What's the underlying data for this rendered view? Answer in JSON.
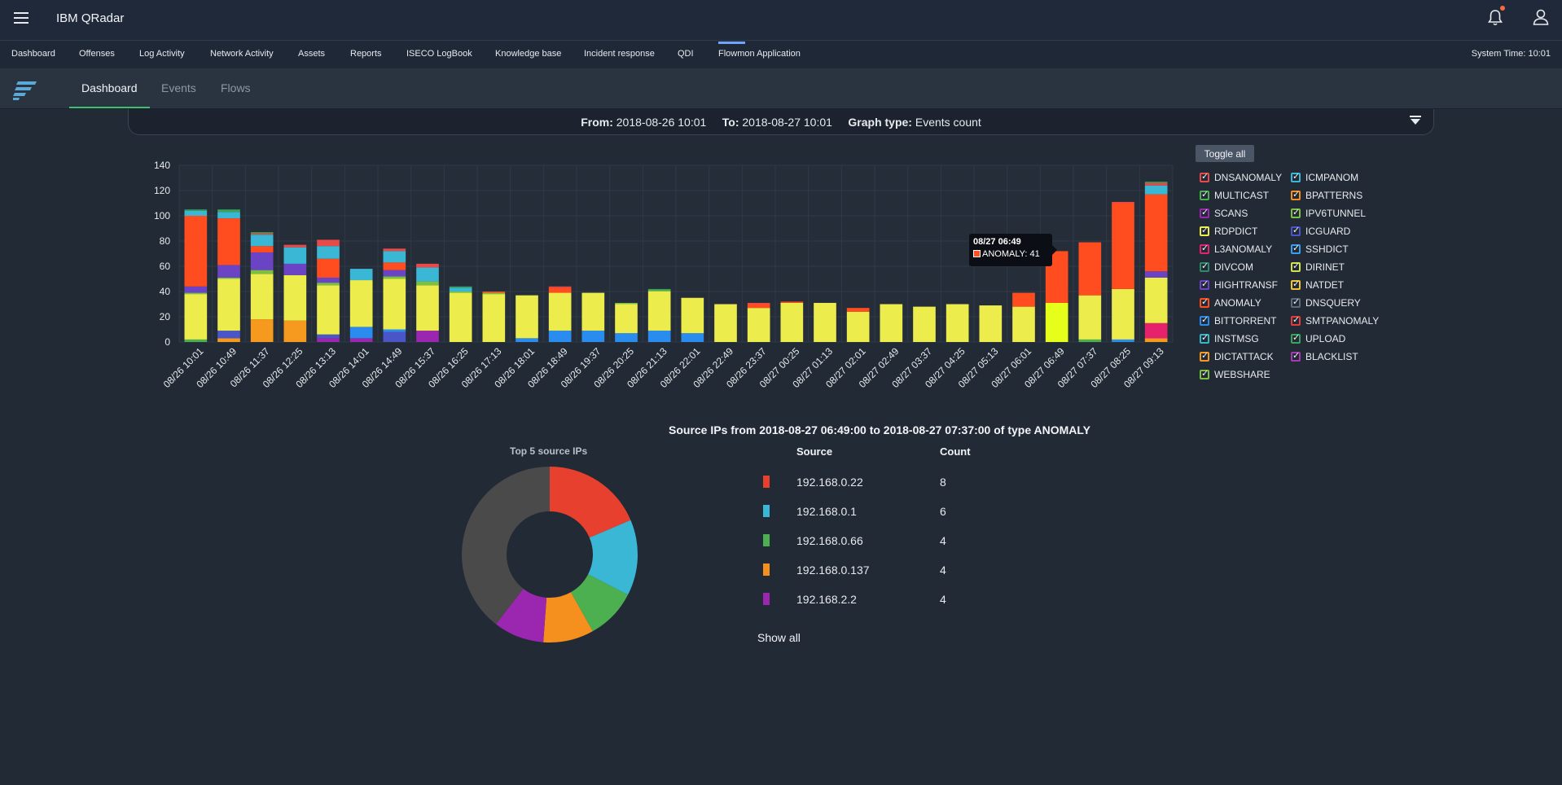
{
  "app": {
    "title": "IBM QRadar"
  },
  "nav": {
    "items": [
      "Dashboard",
      "Offenses",
      "Log Activity",
      "Network Activity",
      "Assets",
      "Reports",
      "ISECO LogBook",
      "Knowledge base",
      "Incident response",
      "QDI",
      "Flowmon Application"
    ],
    "active": "Flowmon Application",
    "system_time": "System Time: 10:01"
  },
  "subtabs": {
    "items": [
      "Dashboard",
      "Events",
      "Flows"
    ],
    "active": "Dashboard"
  },
  "filter": {
    "from_label": "From:",
    "from_value": "2018-08-26 10:01",
    "to_label": "To:",
    "to_value": "2018-08-27 10:01",
    "graph_label": "Graph type:",
    "graph_value": "Events count"
  },
  "legend": {
    "toggle_label": "Toggle all",
    "items": [
      {
        "name": "DNSANOMALY",
        "color": "#e84a4a"
      },
      {
        "name": "ICMPANOM",
        "color": "#3ab7d4"
      },
      {
        "name": "MULTICAST",
        "color": "#4caf50"
      },
      {
        "name": "BPATTERNS",
        "color": "#f5901e"
      },
      {
        "name": "SCANS",
        "color": "#9b27b0"
      },
      {
        "name": "IPV6TUNNEL",
        "color": "#7bc043"
      },
      {
        "name": "RDPDICT",
        "color": "#ecec4c"
      },
      {
        "name": "ICGUARD",
        "color": "#4a55c8"
      },
      {
        "name": "L3ANOMALY",
        "color": "#e5226b"
      },
      {
        "name": "SSHDICT",
        "color": "#3a9ef0"
      },
      {
        "name": "DIVCOM",
        "color": "#2f8a6c"
      },
      {
        "name": "DIRINET",
        "color": "#d6e04a"
      },
      {
        "name": "HIGHTRANSF",
        "color": "#6a44c4"
      },
      {
        "name": "NATDET",
        "color": "#f2c230"
      },
      {
        "name": "ANOMALY",
        "color": "#ff4d1f"
      },
      {
        "name": "DNSQUERY",
        "color": "#5b6a7a"
      },
      {
        "name": "BITTORRENT",
        "color": "#2b8cf0"
      },
      {
        "name": "SMTPANOMALY",
        "color": "#e63b3b"
      },
      {
        "name": "INSTMSG",
        "color": "#35b7c8"
      },
      {
        "name": "UPLOAD",
        "color": "#3aa55a"
      },
      {
        "name": "DICTATTACK",
        "color": "#f59a1e"
      },
      {
        "name": "BLACKLIST",
        "color": "#a33ab3"
      },
      {
        "name": "WEBSHARE",
        "color": "#7cc241"
      }
    ]
  },
  "tooltip": {
    "title": "08/27 06:49",
    "series": "ANOMALY: 41"
  },
  "chart_data": {
    "type": "bar",
    "stacked": true,
    "ylim": [
      0,
      140
    ],
    "yticks": [
      0,
      20,
      40,
      60,
      80,
      100,
      120,
      140
    ],
    "categories": [
      "08/26 10:01",
      "08/26 10:49",
      "08/26 11:37",
      "08/26 12:25",
      "08/26 13:13",
      "08/26 14:01",
      "08/26 14:49",
      "08/26 15:37",
      "08/26 16:25",
      "08/26 17:13",
      "08/26 18:01",
      "08/26 18:49",
      "08/26 19:37",
      "08/26 20:25",
      "08/26 21:13",
      "08/26 22:01",
      "08/26 22:49",
      "08/26 23:37",
      "08/27 00:25",
      "08/27 01:13",
      "08/27 02:01",
      "08/27 02:49",
      "08/27 03:37",
      "08/27 04:25",
      "08/27 05:13",
      "08/27 06:01",
      "08/27 06:49",
      "08/27 07:37",
      "08/27 08:25",
      "08/27 09:13"
    ],
    "series": [
      {
        "name": "MULTICAST",
        "color": "#4caf50",
        "values": [
          2,
          0,
          0,
          0,
          0,
          0,
          0,
          0,
          0,
          0,
          0,
          0,
          0,
          0,
          0,
          0,
          0,
          0,
          0,
          0,
          0,
          0,
          0,
          0,
          0,
          0,
          0,
          2,
          0,
          0
        ]
      },
      {
        "name": "DICTATTACK",
        "color": "#f59a1e",
        "values": [
          0,
          3,
          18,
          17,
          0,
          0,
          0,
          0,
          0,
          0,
          0,
          0,
          0,
          0,
          0,
          0,
          0,
          0,
          0,
          0,
          0,
          0,
          0,
          0,
          0,
          0,
          0,
          0,
          0,
          3
        ]
      },
      {
        "name": "SCANS",
        "color": "#9b27b0",
        "values": [
          0,
          0,
          0,
          0,
          3,
          3,
          0,
          9,
          0,
          0,
          0,
          0,
          0,
          0,
          0,
          0,
          0,
          0,
          0,
          0,
          0,
          0,
          0,
          0,
          0,
          0,
          0,
          0,
          0,
          0
        ]
      },
      {
        "name": "ICGUARD",
        "color": "#4a55c8",
        "values": [
          0,
          6,
          0,
          0,
          3,
          0,
          8,
          0,
          0,
          0,
          0,
          0,
          0,
          0,
          0,
          0,
          0,
          0,
          0,
          0,
          0,
          0,
          0,
          0,
          0,
          0,
          0,
          0,
          0,
          0
        ]
      },
      {
        "name": "BITTORRENT",
        "color": "#2b8cf0",
        "values": [
          0,
          0,
          0,
          0,
          0,
          9,
          2,
          0,
          0,
          0,
          3,
          9,
          9,
          7,
          9,
          7,
          0,
          0,
          0,
          0,
          0,
          0,
          0,
          0,
          0,
          0,
          0,
          0,
          2,
          0
        ]
      },
      {
        "name": "L3ANOMALY",
        "color": "#e5226b",
        "values": [
          0,
          0,
          0,
          0,
          0,
          0,
          0,
          0,
          0,
          0,
          0,
          0,
          0,
          0,
          0,
          0,
          0,
          0,
          0,
          0,
          0,
          0,
          0,
          0,
          0,
          0,
          0,
          0,
          0,
          12
        ]
      },
      {
        "name": "RDPDICT",
        "color": "#ecec4c",
        "values": [
          36,
          41,
          36,
          36,
          39,
          37,
          40,
          36,
          39,
          38,
          34,
          30,
          30,
          23,
          31,
          28,
          30,
          27,
          31,
          31,
          24,
          30,
          28,
          30,
          29,
          28,
          31,
          35,
          40,
          36
        ]
      },
      {
        "name": "IPV6TUNNEL",
        "color": "#7bc043",
        "values": [
          1,
          1,
          3,
          0,
          2,
          0,
          2,
          3,
          1,
          1,
          0,
          0,
          0,
          1,
          1,
          0,
          0,
          0,
          0,
          0,
          0,
          0,
          0,
          0,
          0,
          0,
          0,
          0,
          0,
          0
        ]
      },
      {
        "name": "HIGHTRANSF",
        "color": "#6a44c4",
        "values": [
          5,
          10,
          14,
          9,
          4,
          0,
          5,
          0,
          0,
          0,
          0,
          0,
          0,
          0,
          0,
          0,
          0,
          0,
          0,
          0,
          0,
          0,
          0,
          0,
          0,
          0,
          0,
          0,
          0,
          5
        ]
      },
      {
        "name": "ANOMALY",
        "color": "#ff4d1f",
        "values": [
          56,
          37,
          5,
          0,
          15,
          0,
          6,
          0,
          0,
          1,
          0,
          4,
          0,
          0,
          0,
          0,
          0,
          3,
          1,
          0,
          3,
          0,
          0,
          0,
          0,
          11,
          41,
          42,
          68,
          61
        ]
      },
      {
        "name": "ICMPANOM",
        "color": "#3ab7d4",
        "values": [
          4,
          5,
          9,
          13,
          10,
          9,
          9,
          11,
          3,
          0,
          0,
          0,
          0,
          0,
          0,
          0,
          0,
          0,
          0,
          0,
          0,
          0,
          0,
          0,
          0,
          0,
          0,
          0,
          0,
          7
        ]
      },
      {
        "name": "DNSANOMALY",
        "color": "#e84a4a",
        "values": [
          0,
          0,
          1,
          2,
          5,
          0,
          2,
          3,
          0,
          0,
          0,
          1,
          0,
          0,
          0,
          0,
          0,
          1,
          0,
          0,
          0,
          0,
          0,
          0,
          0,
          0,
          0,
          0,
          1,
          2
        ]
      },
      {
        "name": "UPLOAD",
        "color": "#3aa55a",
        "values": [
          1,
          2,
          1,
          0,
          0,
          0,
          0,
          0,
          1,
          0,
          0,
          0,
          0,
          0,
          1,
          0,
          0,
          0,
          0,
          0,
          0,
          0,
          0,
          0,
          0,
          0,
          0,
          0,
          0,
          1
        ]
      }
    ],
    "highlight": {
      "category": "08/27 06:49",
      "series": "RDPDICT",
      "color": "#e6ff1a"
    }
  },
  "ips": {
    "title": "Source IPs from 2018-08-27 06:49:00 to 2018-08-27 07:37:00 of type ANOMALY",
    "donut_title": "Top 5 source IPs",
    "col_source": "Source",
    "col_count": "Count",
    "rows": [
      {
        "source": "192.168.0.22",
        "count": "8",
        "color": "#e8402f"
      },
      {
        "source": "192.168.0.1",
        "count": "6",
        "color": "#3ab7d4"
      },
      {
        "source": "192.168.0.66",
        "count": "4",
        "color": "#4caf50"
      },
      {
        "source": "192.168.0.137",
        "count": "4",
        "color": "#f5901e"
      },
      {
        "source": "192.168.2.2",
        "count": "4",
        "color": "#9b27b0"
      }
    ],
    "other_value": 17,
    "other_color": "#4a4a4a",
    "show_all": "Show all"
  }
}
